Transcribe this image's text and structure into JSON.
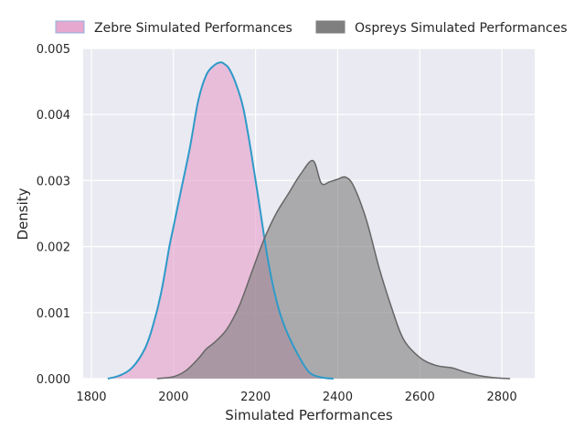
{
  "chart_data": {
    "type": "area",
    "title": "",
    "xlabel": "Simulated Performances",
    "ylabel": "Density",
    "xlim": [
      1780,
      2880
    ],
    "ylim": [
      0,
      0.005
    ],
    "xticks": [
      1800,
      2000,
      2200,
      2400,
      2600,
      2800
    ],
    "xtick_labels": [
      "1800",
      "2000",
      "2200",
      "2400",
      "2600",
      "2800"
    ],
    "yticks": [
      0,
      0.001,
      0.002,
      0.003,
      0.004,
      0.005
    ],
    "ytick_labels": [
      "0.000",
      "0.001",
      "0.002",
      "0.003",
      "0.004",
      "0.005"
    ],
    "grid": true,
    "legend_position": "top",
    "series": [
      {
        "name": "Zebre Simulated Performances",
        "fill": "#e7a8cf",
        "line": "#2e9ac8",
        "x": [
          1840,
          1870,
          1900,
          1930,
          1950,
          1970,
          1990,
          2000,
          2020,
          2040,
          2060,
          2080,
          2100,
          2115,
          2125,
          2135,
          2150,
          2170,
          2190,
          2210,
          2230,
          2250,
          2270,
          2300,
          2330,
          2360,
          2390
        ],
        "y": [
          0,
          5e-05,
          0.00017,
          0.00045,
          0.0008,
          0.0013,
          0.002,
          0.0023,
          0.0029,
          0.0035,
          0.0042,
          0.0046,
          0.00475,
          0.00479,
          0.00476,
          0.0047,
          0.0045,
          0.0041,
          0.0034,
          0.0026,
          0.0018,
          0.0012,
          0.0008,
          0.0004,
          0.0001,
          2e-05,
          0
        ]
      },
      {
        "name": "Ospreys Simulated Performances",
        "fill": "#7f7f7f",
        "line": "#666666",
        "x": [
          1960,
          2000,
          2030,
          2060,
          2080,
          2100,
          2130,
          2160,
          2190,
          2220,
          2250,
          2280,
          2310,
          2340,
          2360,
          2380,
          2400,
          2420,
          2440,
          2470,
          2500,
          2530,
          2560,
          2600,
          2640,
          2680,
          2710,
          2750,
          2790,
          2820
        ],
        "y": [
          0,
          3e-05,
          0.00012,
          0.0003,
          0.00045,
          0.00055,
          0.00075,
          0.0011,
          0.0016,
          0.0021,
          0.0025,
          0.0028,
          0.0031,
          0.0033,
          0.00296,
          0.00298,
          0.00302,
          0.00305,
          0.0029,
          0.0024,
          0.0017,
          0.0011,
          0.0006,
          0.00032,
          0.0002,
          0.00016,
          0.0001,
          4e-05,
          1e-05,
          0
        ]
      }
    ]
  }
}
